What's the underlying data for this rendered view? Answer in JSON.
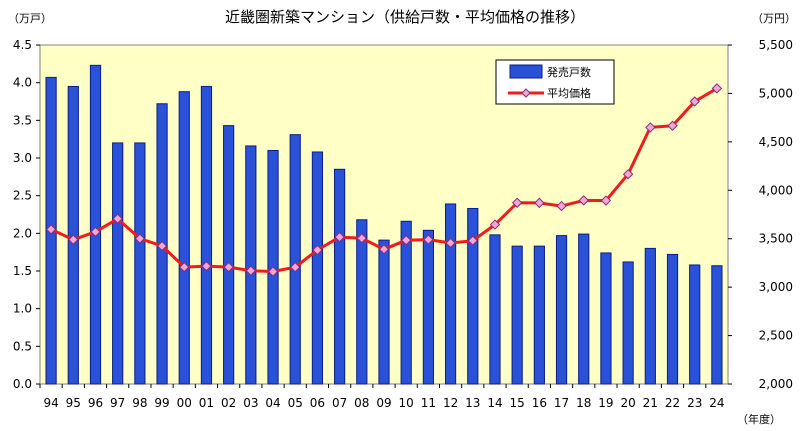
{
  "chart_data": {
    "type": "bar",
    "title": "近畿圏新築マンション（供給戸数・平均価格の推移）",
    "left_unit": "（万戸）",
    "right_unit": "（万円）",
    "x_unit": "（年度）",
    "categories": [
      "94",
      "95",
      "96",
      "97",
      "98",
      "99",
      "00",
      "01",
      "02",
      "03",
      "04",
      "05",
      "06",
      "07",
      "08",
      "09",
      "10",
      "11",
      "12",
      "13",
      "14",
      "15",
      "16",
      "17",
      "18",
      "19",
      "20",
      "21",
      "22",
      "23",
      "24"
    ],
    "y_left_range": [
      0,
      4.5
    ],
    "y_left_ticks": [
      "0.0",
      "0.5",
      "1.0",
      "1.5",
      "2.0",
      "2.5",
      "3.0",
      "3.5",
      "4.0",
      "4.5"
    ],
    "y_right_range": [
      2000,
      5500
    ],
    "y_right_ticks": [
      "2,000",
      "2,500",
      "3,000",
      "3,500",
      "4,000",
      "4,500",
      "5,000",
      "5,500"
    ],
    "grid": false,
    "legend_position": "top-right",
    "series": [
      {
        "name": "発売戸数",
        "type": "bar",
        "axis": "left",
        "color": "#2a52d9",
        "values": [
          4.07,
          3.95,
          4.23,
          3.2,
          3.2,
          3.72,
          3.88,
          3.95,
          3.43,
          3.16,
          3.1,
          3.31,
          3.08,
          2.85,
          2.18,
          1.91,
          2.16,
          2.04,
          2.39,
          2.33,
          1.98,
          1.83,
          1.83,
          1.97,
          1.99,
          1.74,
          1.62,
          1.8,
          1.72,
          1.58,
          1.57
        ]
      },
      {
        "name": "平均価格",
        "type": "line",
        "axis": "right",
        "color": "#ee1c1c",
        "marker_color": "#f0a7d8",
        "values": [
          3596,
          3490,
          3571,
          3706,
          3501,
          3425,
          3207,
          3217,
          3207,
          3170,
          3161,
          3206,
          3383,
          3517,
          3505,
          3391,
          3485,
          3491,
          3456,
          3480,
          3646,
          3871,
          3870,
          3837,
          3896,
          3894,
          4166,
          4649,
          4666,
          4917,
          5052
        ]
      }
    ]
  }
}
